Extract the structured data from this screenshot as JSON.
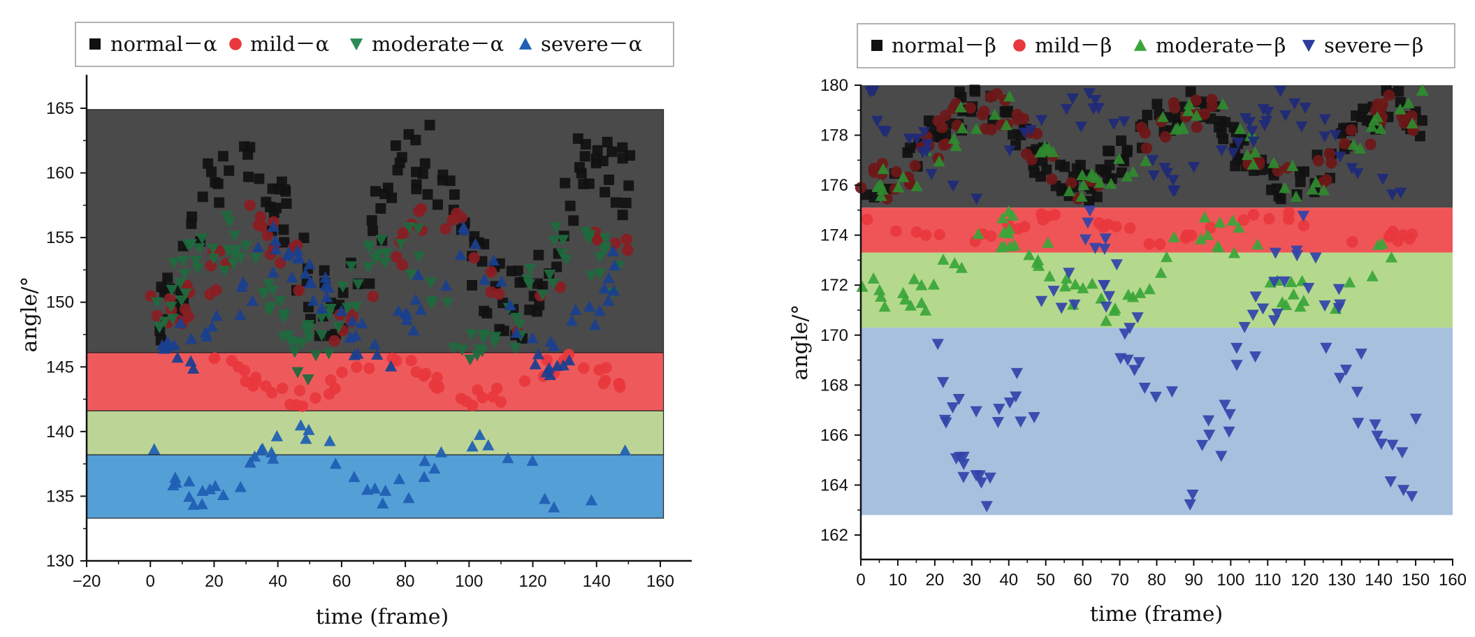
{
  "chart_data": [
    {
      "id": "alpha",
      "type": "scatter",
      "xlabel": "time (frame)",
      "ylabel": "angle/°",
      "xlim": [
        -20,
        170
      ],
      "ylim": [
        130,
        168
      ],
      "xticks": [
        -20,
        0,
        20,
        40,
        60,
        80,
        100,
        120,
        140,
        160
      ],
      "yticks": [
        130,
        135,
        140,
        145,
        150,
        155,
        160,
        165
      ],
      "legend": {
        "position": "top",
        "entries": [
          {
            "label": "normal－α",
            "marker": "square",
            "color": "#111111"
          },
          {
            "label": "mild－α",
            "marker": "circle",
            "color": "#e8383d"
          },
          {
            "label": "moderate－α",
            "marker": "triangle-down",
            "color": "#2e8b57"
          },
          {
            "label": "severe－α",
            "marker": "triangle-up",
            "color": "#1f5fb4"
          }
        ]
      },
      "bands": [
        {
          "name": "normal",
          "from": 146.1,
          "to": 164.9,
          "color": "#4a4a4a"
        },
        {
          "name": "mild",
          "from": 141.6,
          "to": 146.1,
          "color": "#ee5a5c"
        },
        {
          "name": "moderate",
          "from": 138.2,
          "to": 141.6,
          "color": "#bcd596"
        },
        {
          "name": "severe",
          "from": 133.3,
          "to": 138.2,
          "color": "#549fd6"
        }
      ],
      "band_xrange": [
        -20,
        161
      ],
      "series": [
        {
          "name": "normal－α",
          "marker": "square",
          "color": "#111111",
          "x_range": [
            0,
            151
          ],
          "y_range": [
            146.5,
            164.5
          ],
          "count": 150,
          "seed": 11
        },
        {
          "name": "mild－α",
          "marker": "circle",
          "color": "#8a1d22",
          "x_range": [
            0,
            150
          ],
          "y_range": [
            146.5,
            158
          ],
          "count": 60,
          "seed": 23
        },
        {
          "name": "mild－α (band)",
          "marker": "circle",
          "color": "#e8383d",
          "x_range": [
            14,
            150
          ],
          "y_range": [
            141.8,
            146
          ],
          "count": 55,
          "seed": 31
        },
        {
          "name": "moderate－α",
          "marker": "triangle-down",
          "color": "#1e6b3e",
          "x_range": [
            0,
            151
          ],
          "y_range": [
            144,
            157
          ],
          "count": 120,
          "seed": 37
        },
        {
          "name": "severe－α",
          "marker": "triangle-up",
          "color": "#1a3f8f",
          "x_range": [
            2,
            147
          ],
          "y_range": [
            144,
            156
          ],
          "count": 90,
          "seed": 41
        },
        {
          "name": "severe－α (low)",
          "marker": "triangle-up",
          "color": "#1f5fb4",
          "x_range": [
            0,
            150
          ],
          "y_range": [
            133.8,
            141
          ],
          "count": 45,
          "seed": 53
        }
      ]
    },
    {
      "id": "beta",
      "type": "scatter",
      "xlabel": "time (frame)",
      "ylabel": "angle/°",
      "xlim": [
        0,
        160
      ],
      "ylim": [
        161,
        180
      ],
      "xticks": [
        0,
        10,
        20,
        30,
        40,
        50,
        60,
        70,
        80,
        90,
        100,
        110,
        120,
        130,
        140,
        150,
        160
      ],
      "yticks": [
        162,
        164,
        166,
        168,
        170,
        172,
        174,
        176,
        178,
        180
      ],
      "legend": {
        "position": "top",
        "entries": [
          {
            "label": "normal－β",
            "marker": "square",
            "color": "#111111"
          },
          {
            "label": "mild－β",
            "marker": "circle",
            "color": "#e8383d"
          },
          {
            "label": "moderate－β",
            "marker": "triangle-up",
            "color": "#3aa63a"
          },
          {
            "label": "severe－β",
            "marker": "triangle-down",
            "color": "#2c3c9c"
          }
        ]
      },
      "bands": [
        {
          "name": "normal",
          "from": 175.1,
          "to": 180,
          "color": "#4a4a4a"
        },
        {
          "name": "mild",
          "from": 173.3,
          "to": 175.1,
          "color": "#ef5556"
        },
        {
          "name": "moderate",
          "from": 170.3,
          "to": 173.3,
          "color": "#b5d98c"
        },
        {
          "name": "severe",
          "from": 162.8,
          "to": 170.3,
          "color": "#a7c0de"
        }
      ],
      "band_xrange": [
        0,
        160
      ],
      "series": [
        {
          "name": "normal－β",
          "marker": "square",
          "color": "#111111",
          "x_range": [
            0,
            152
          ],
          "y_range": [
            175.2,
            179.9
          ],
          "count": 160,
          "seed": 61
        },
        {
          "name": "mild－β",
          "marker": "circle",
          "color": "#6e1818",
          "x_range": [
            0,
            151
          ],
          "y_range": [
            175.3,
            179.8
          ],
          "count": 90,
          "seed": 67
        },
        {
          "name": "mild－β (band)",
          "marker": "circle",
          "color": "#e8383d",
          "x_range": [
            0,
            151
          ],
          "y_range": [
            173.6,
            175
          ],
          "count": 40,
          "seed": 71
        },
        {
          "name": "moderate－β",
          "marker": "triangle-up",
          "color": "#2f8a2f",
          "x_range": [
            0,
            152
          ],
          "y_range": [
            175.2,
            179.9
          ],
          "count": 70,
          "seed": 73
        },
        {
          "name": "moderate－β (band)",
          "marker": "triangle-up",
          "color": "#3aa63a",
          "x_range": [
            0,
            145
          ],
          "y_range": [
            170.5,
            175
          ],
          "count": 75,
          "seed": 79
        },
        {
          "name": "severe－β",
          "marker": "triangle-down",
          "color": "#1f2a78",
          "x_range": [
            0,
            150
          ],
          "y_range": [
            175.3,
            179.9
          ],
          "count": 60,
          "seed": 83
        },
        {
          "name": "severe－β (low)",
          "marker": "triangle-down",
          "color": "#3344aa",
          "x_range": [
            18,
            152
          ],
          "y_range": [
            162.9,
            175
          ],
          "count": 95,
          "seed": 89
        }
      ]
    }
  ]
}
